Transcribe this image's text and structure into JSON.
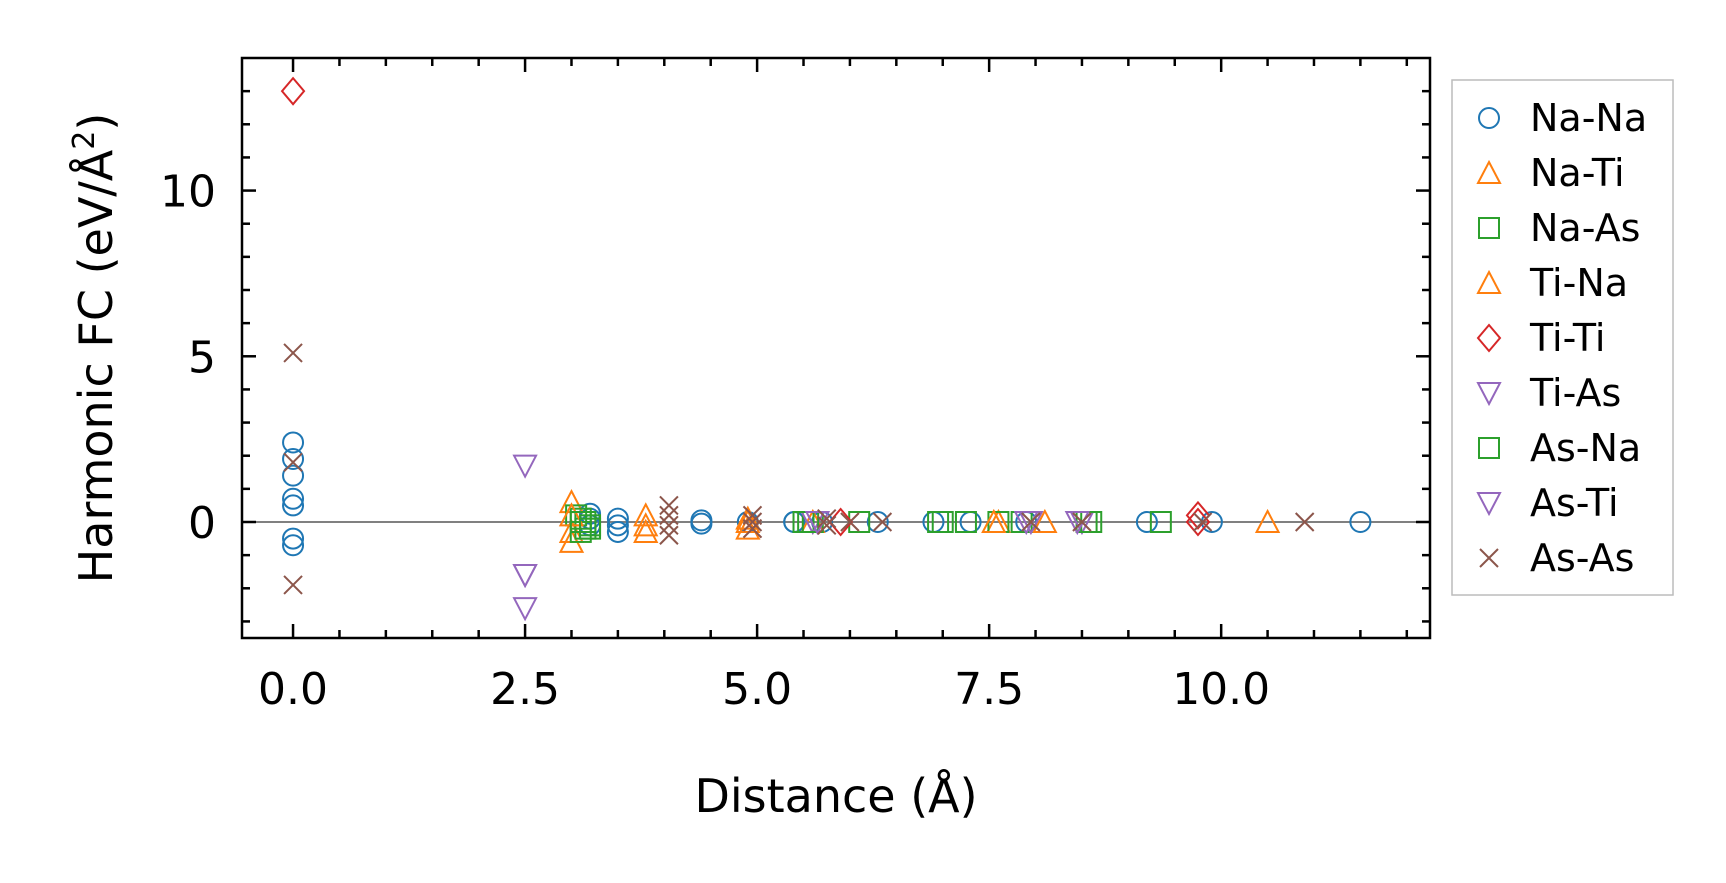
{
  "chart_data": {
    "type": "scatter",
    "xlabel": "Distance (Å)",
    "ylabel_main": "Harmonic FC (eV/Å",
    "ylabel_sup": "2",
    "ylabel_close": ")",
    "xlim": [
      -0.55,
      12.25
    ],
    "ylim": [
      -3.5,
      14.0
    ],
    "xticks": [
      0.0,
      2.5,
      5.0,
      7.5,
      10.0
    ],
    "xtick_labels": [
      "0.0",
      "2.5",
      "5.0",
      "7.5",
      "10.0"
    ],
    "yticks": [
      0,
      5,
      10
    ],
    "ytick_labels": [
      "0",
      "5",
      "10"
    ],
    "legend_position": "outside-right",
    "zero_line": true,
    "series": [
      {
        "name": "Na-Na",
        "color": "#1f77b4",
        "marker": "circle",
        "x": [
          0,
          0,
          0,
          0,
          0,
          0,
          0,
          3.2,
          3.2,
          3.2,
          3.5,
          3.5,
          3.5,
          4.4,
          4.4,
          4.9,
          5.4,
          5.4,
          5.7,
          6.3,
          6.9,
          7.3,
          7.9,
          9.2,
          9.9,
          11.5
        ],
        "y": [
          2.4,
          1.9,
          1.4,
          0.7,
          0.5,
          -0.5,
          -0.7,
          0.25,
          0.1,
          -0.1,
          0.1,
          -0.1,
          -0.3,
          0.05,
          -0.05,
          0.0,
          0.0,
          0.0,
          0.0,
          0.0,
          0.0,
          0.0,
          0.0,
          0.0,
          0.0,
          0.0
        ]
      },
      {
        "name": "Na-Ti",
        "color": "#ff7f0e",
        "marker": "triangle-up",
        "x": [
          3.0,
          3.0,
          3.0,
          3.8,
          3.8,
          4.9,
          4.9,
          5.6,
          7.6,
          8.1,
          10.5
        ],
        "y": [
          0.6,
          -0.3,
          -0.6,
          0.2,
          -0.3,
          0.1,
          -0.2,
          0.0,
          0.0,
          0.0,
          0.0
        ]
      },
      {
        "name": "Na-As",
        "color": "#2ca02c",
        "marker": "square",
        "x": [
          3.05,
          3.1,
          3.15,
          3.2,
          3.1,
          3.15,
          5.5,
          5.6,
          6.1,
          6.95,
          7.25,
          7.6,
          7.85,
          8.55,
          9.35
        ],
        "y": [
          0.2,
          0.1,
          0.0,
          -0.1,
          -0.3,
          -0.2,
          0.0,
          0.0,
          0.0,
          0.0,
          0.0,
          0.0,
          0.0,
          0.0,
          0.0
        ]
      },
      {
        "name": "Ti-Na",
        "color": "#ff7f0e",
        "marker": "triangle-up",
        "x": [
          3.0,
          3.8,
          4.9,
          7.55
        ],
        "y": [
          0.2,
          -0.1,
          0.0,
          0.0
        ]
      },
      {
        "name": "Ti-Ti",
        "color": "#d62728",
        "marker": "diamond",
        "x": [
          0,
          5.9,
          9.75,
          9.75
        ],
        "y": [
          13.0,
          0.0,
          0.2,
          0.0
        ]
      },
      {
        "name": "Ti-As",
        "color": "#9467bd",
        "marker": "triangle-down",
        "x": [
          2.5,
          2.5,
          2.5,
          5.6,
          7.95,
          8.5
        ],
        "y": [
          1.7,
          -1.6,
          -2.6,
          0.0,
          0.0,
          0.0
        ]
      },
      {
        "name": "As-Na",
        "color": "#2ca02c",
        "marker": "square",
        "x": [
          3.1,
          3.2,
          5.55,
          7.0,
          8.6
        ],
        "y": [
          0.0,
          -0.2,
          0.0,
          0.0,
          0.0
        ]
      },
      {
        "name": "As-Ti",
        "color": "#9467bd",
        "marker": "triangle-down",
        "x": [
          2.5,
          5.65,
          7.9,
          8.45
        ],
        "y": [
          -1.6,
          0.0,
          0.0,
          0.0
        ]
      },
      {
        "name": "As-As",
        "color": "#8c564b",
        "marker": "x",
        "x": [
          0,
          0,
          0,
          4.05,
          4.05,
          4.05,
          4.05,
          4.95,
          4.95,
          4.95,
          5.75,
          5.75,
          6.0,
          6.35,
          7.95,
          8.5,
          9.8,
          10.9
        ],
        "y": [
          5.1,
          1.8,
          -1.9,
          0.5,
          0.2,
          -0.1,
          -0.4,
          0.2,
          0.0,
          -0.2,
          0.1,
          -0.1,
          0.0,
          0.0,
          0.0,
          0.0,
          0.0,
          0.0
        ]
      }
    ]
  }
}
